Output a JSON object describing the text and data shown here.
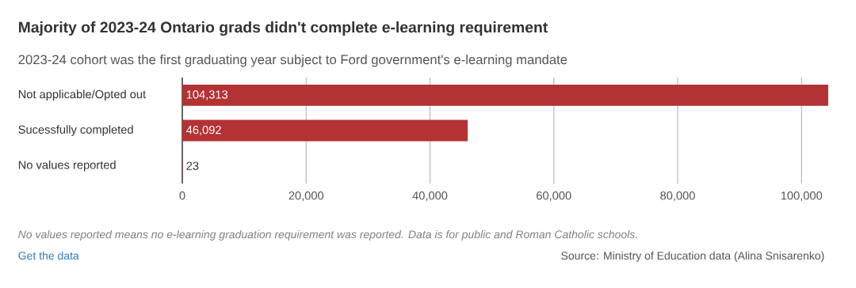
{
  "chart_data": {
    "type": "bar",
    "orientation": "horizontal",
    "title": "Majority of 2023-24 Ontario grads didn't complete e-learning requirement",
    "subtitle": "2023-24 cohort was the first graduating year subject to Ford government's e-learning mandate",
    "categories": [
      "Not applicable/Opted out",
      "Sucessfully completed",
      "No values reported"
    ],
    "values": [
      104313,
      46092,
      23
    ],
    "value_labels": [
      "104,313",
      "46,092",
      "23"
    ],
    "color": "#b33234",
    "xlim": [
      0,
      104313
    ],
    "xticks": [
      0,
      {
        "value": 20000,
        "label": "20,000"
      },
      {
        "value": 40000,
        "label": "40,000"
      },
      {
        "value": 60000,
        "label": "60,000"
      },
      {
        "value": 80000,
        "label": "80,000"
      },
      {
        "value": 100000,
        "label": "100,000"
      }
    ],
    "grid": "x",
    "annotations": [
      "No values reported means no e-learning graduation requirement was reported. Data is for public and Roman Catholic schools.",
      "Get the data",
      "Source: Ministry of Education data (Alina Snisarenko)"
    ]
  }
}
